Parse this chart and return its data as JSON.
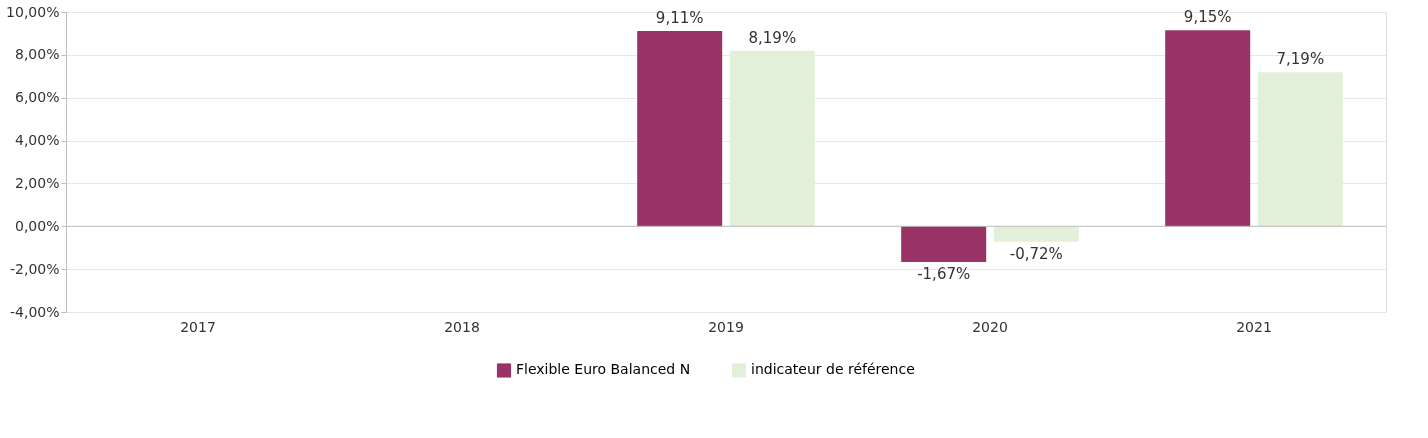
{
  "chart_data": {
    "type": "bar",
    "categories": [
      "2017",
      "2018",
      "2019",
      "2020",
      "2021"
    ],
    "series": [
      {
        "name": "Flexible Euro Balanced N",
        "color": "#993366",
        "values": [
          null,
          null,
          9.11,
          -1.67,
          9.15
        ],
        "value_labels": [
          null,
          null,
          "9,11%",
          "-1,67%",
          "9,15%"
        ]
      },
      {
        "name": "indicateur de référence",
        "color": "#e2efd9",
        "values": [
          null,
          null,
          8.19,
          -0.72,
          7.19
        ],
        "value_labels": [
          null,
          null,
          "8,19%",
          "-0,72%",
          "7,19%"
        ]
      }
    ],
    "ylim": [
      -4,
      10
    ],
    "yticks": [
      {
        "value": -4,
        "label": "-4,00%"
      },
      {
        "value": -2,
        "label": "-2,00%"
      },
      {
        "value": 0,
        "label": "0,00%"
      },
      {
        "value": 2,
        "label": "2,00%"
      },
      {
        "value": 4,
        "label": "4,00%"
      },
      {
        "value": 6,
        "label": "6,00%"
      },
      {
        "value": 8,
        "label": "8,00%"
      },
      {
        "value": 10,
        "label": "10,00%"
      }
    ],
    "grid": "y",
    "legend": "bottom"
  }
}
